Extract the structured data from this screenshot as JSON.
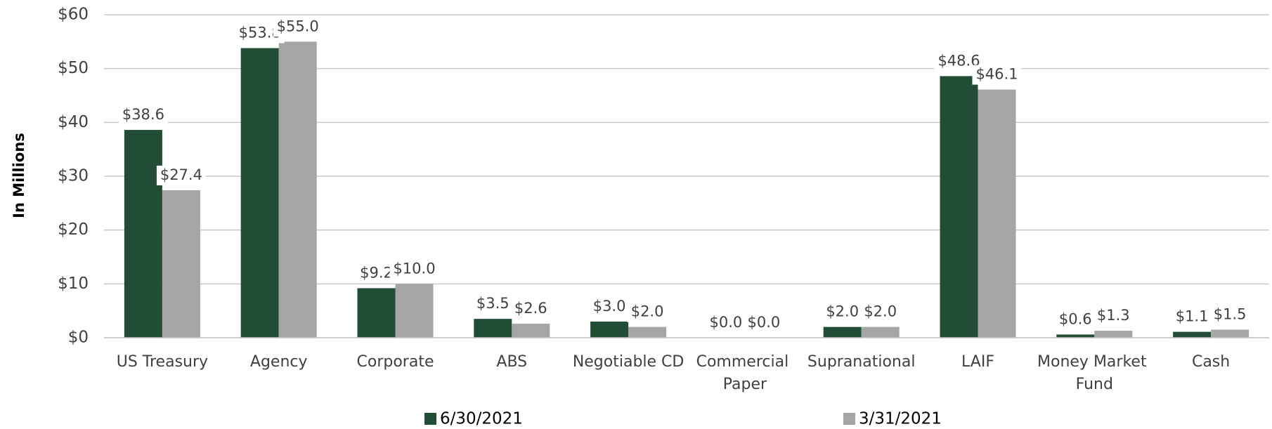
{
  "chart_data": {
    "type": "bar",
    "y_label": "In Millions",
    "categories": [
      "US Treasury",
      "Agency",
      "Corporate",
      "ABS",
      "Negotiable CD",
      "Commercial Paper",
      "Supranational",
      "LAIF",
      "Money Market Fund",
      "Cash"
    ],
    "series": [
      {
        "name": "6/30/2021",
        "color": "#214d36",
        "values": [
          38.6,
          53.8,
          9.2,
          3.5,
          3.0,
          0.0,
          2.0,
          48.6,
          0.6,
          1.1
        ],
        "value_labels": [
          "$38.6",
          "$53.8",
          "$9.2",
          "$3.5",
          "$3.0",
          "$0.0",
          "$2.0",
          "$48.6",
          "$0.6",
          "$1.1"
        ]
      },
      {
        "name": "3/31/2021",
        "color": "#a5a5a5",
        "values": [
          27.4,
          55.0,
          10.0,
          2.6,
          2.0,
          0.0,
          2.0,
          46.1,
          1.3,
          1.5
        ],
        "value_labels": [
          "$27.4",
          "$55.0",
          "$10.0",
          "$2.6",
          "$2.0",
          "$0.0",
          "$2.0",
          "$46.1",
          "$1.3",
          "$1.5"
        ]
      }
    ],
    "ylim": [
      0,
      60
    ],
    "yticks": [
      {
        "value": 0,
        "label": "$0"
      },
      {
        "value": 10,
        "label": "$10"
      },
      {
        "value": 20,
        "label": "$20"
      },
      {
        "value": 30,
        "label": "$30"
      },
      {
        "value": 40,
        "label": "$40"
      },
      {
        "value": 50,
        "label": "$50"
      },
      {
        "value": 60,
        "label": "$60"
      }
    ],
    "grid": true,
    "legend": "bottom"
  }
}
